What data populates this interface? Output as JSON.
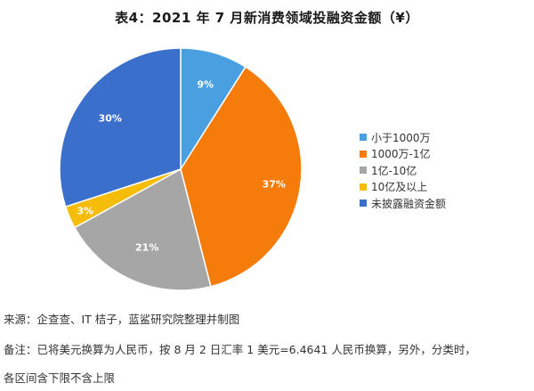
{
  "chart_data": {
    "type": "pie",
    "title": "表4：2021 年 7 月新消费领域投融资金额（¥）",
    "categories": [
      "小于1000万",
      "1000万-1亿",
      "1亿-10亿",
      "10亿及以上",
      "未披露融资金额"
    ],
    "values": [
      9,
      37,
      21,
      3,
      30
    ],
    "value_labels": [
      "9%",
      "37%",
      "21%",
      "3%",
      "30%"
    ],
    "colors": [
      "#4a9fe0",
      "#f57c0a",
      "#a6a6a6",
      "#f5bc0a",
      "#3a6fcb"
    ],
    "legend_position": "right"
  },
  "notes": {
    "source": "来源：企查查、IT 桔子，蓝鲨研究院整理并制图",
    "remark_line1": "备注：已将美元换算为人民币，按 8 月 2 日汇率 1 美元=6.4641 人民币换算，另外，分类时，",
    "remark_line2": "各区间含下限不含上限"
  }
}
